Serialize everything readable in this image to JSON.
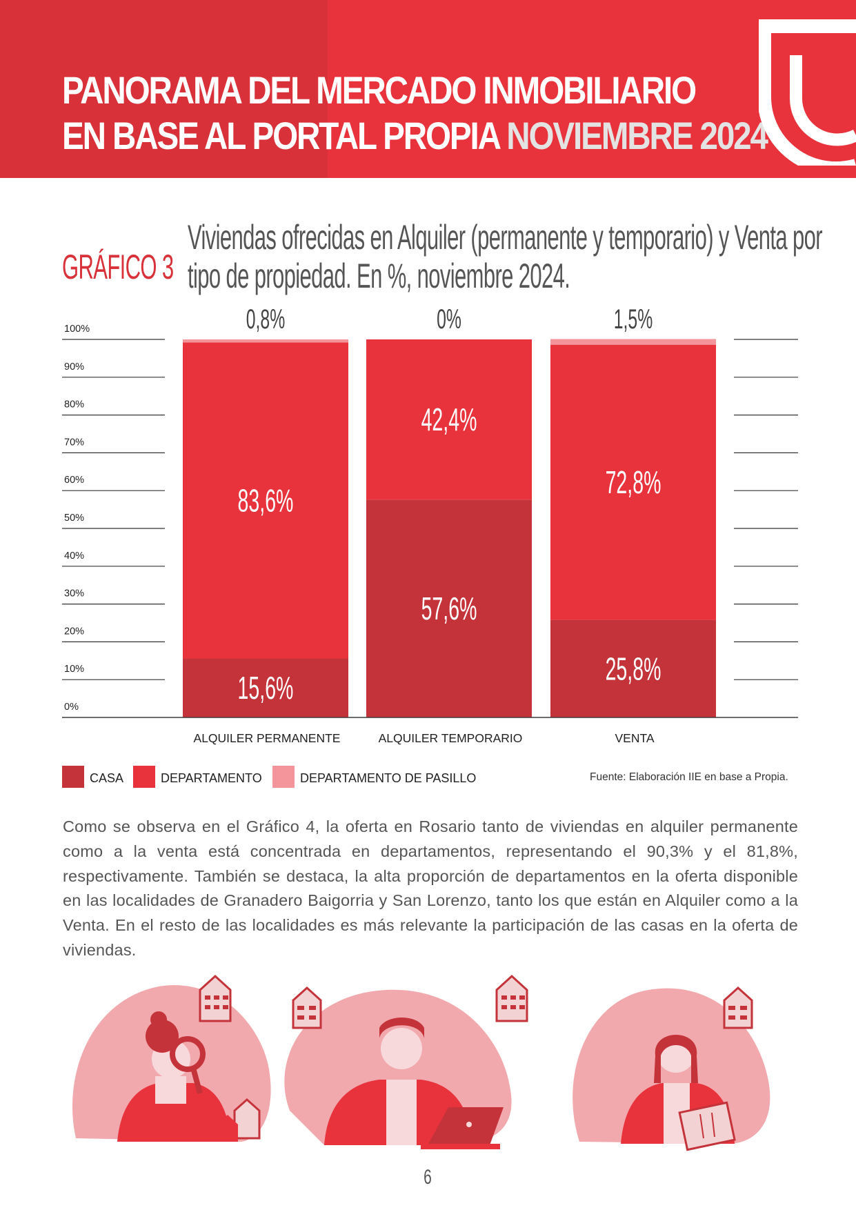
{
  "header": {
    "title_line1": "PANORAMA DEL MERCADO INMOBILIARIO",
    "title_line2": "EN BASE AL PORTAL PROPIA",
    "title_highlight": "NOVIEMBRE 2024",
    "bg_color": "#d8313a"
  },
  "figure": {
    "label": "GRÁFICO 3",
    "title": "Viviendas ofrecidas en Alquiler (permanente y temporario) y Venta por tipo de propiedad. En %, noviembre 2024."
  },
  "chart_data": {
    "type": "bar",
    "stacked": true,
    "categories": [
      "ALQUILER PERMANENTE",
      "ALQUILER TEMPORARIO",
      "VENTA"
    ],
    "series": [
      {
        "name": "CASA",
        "values": [
          15.6,
          57.6,
          25.8
        ],
        "labels": [
          "15,6%",
          "57,6%",
          "25,8%"
        ],
        "color": "#c5333a"
      },
      {
        "name": "DEPARTAMENTO",
        "values": [
          83.6,
          42.4,
          72.8
        ],
        "labels": [
          "83,6%",
          "42,4%",
          "72,8%"
        ],
        "color": "#e8333d"
      },
      {
        "name": "DEPARTAMENTO DE PASILLO",
        "values": [
          0.8,
          0,
          1.5
        ],
        "labels": [
          "0,8%",
          "0%",
          "1,5%"
        ],
        "color": "#f3959a"
      }
    ],
    "y_ticks": [
      "0%",
      "10%",
      "20%",
      "30%",
      "40%",
      "50%",
      "60%",
      "70%",
      "80%",
      "90%",
      "100%"
    ],
    "ylim": [
      0,
      100
    ],
    "grid": true,
    "legend_position": "bottom-left"
  },
  "source": "Fuente: Elaboración IIE en base a Propia.",
  "paragraph": "Como se observa en el Gráfico 4, la oferta en Rosario tanto de viviendas en alquiler permanente como a la venta está concentrada en departamentos, representando el 90,3% y el 81,8%, respectivamente. También se destaca, la alta proporción de departamentos en la oferta disponible en las localidades de Granadero Baigorria y San Lorenzo, tanto los que están en Alquiler como a la Venta. En el resto de las localidades es más relevante la participación de las casas en la oferta de viviendas.",
  "page_number": "6"
}
